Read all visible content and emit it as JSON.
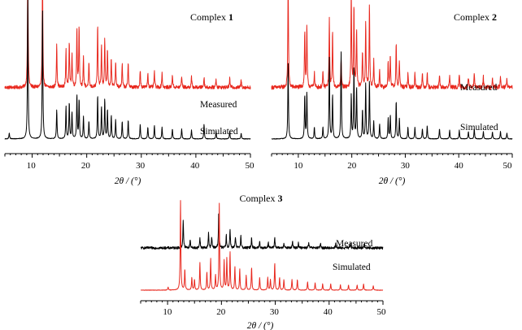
{
  "chart_data": [
    {
      "type": "line",
      "title": "Complex ",
      "title_number": "1",
      "xlabel": "2θ / (°)",
      "xlim": [
        5,
        50
      ],
      "x_ticks": [
        "10",
        "20",
        "30",
        "40",
        "50"
      ],
      "x_tick_values": [
        10,
        20,
        30,
        40,
        50
      ],
      "y_axis": "hidden",
      "series": [
        {
          "name": "Measured",
          "color": "#e8281e",
          "baseline": 0.45,
          "noise": 0.012,
          "peaks": [
            [
              9.2,
              0.88
            ],
            [
              11.9,
              0.78
            ],
            [
              14.5,
              0.3
            ],
            [
              16.2,
              0.26
            ],
            [
              16.8,
              0.32
            ],
            [
              17.3,
              0.22
            ],
            [
              18.2,
              0.4
            ],
            [
              18.6,
              0.42
            ],
            [
              19.4,
              0.2
            ],
            [
              20.4,
              0.16
            ],
            [
              22.0,
              0.42
            ],
            [
              22.7,
              0.28
            ],
            [
              23.3,
              0.33
            ],
            [
              23.8,
              0.26
            ],
            [
              24.5,
              0.2
            ],
            [
              25.3,
              0.17
            ],
            [
              26.5,
              0.16
            ],
            [
              27.6,
              0.17
            ],
            [
              29.8,
              0.12
            ],
            [
              31.2,
              0.1
            ],
            [
              32.4,
              0.11
            ],
            [
              33.8,
              0.1
            ],
            [
              35.7,
              0.09
            ],
            [
              37.4,
              0.08
            ],
            [
              39.2,
              0.07
            ],
            [
              41.5,
              0.07
            ],
            [
              43.7,
              0.06
            ],
            [
              46.2,
              0.06
            ],
            [
              48.3,
              0.05
            ]
          ]
        },
        {
          "name": "Simulated",
          "color": "#000000",
          "baseline": 0.1,
          "noise": 0.002,
          "peaks": [
            [
              5.8,
              0.04
            ],
            [
              9.2,
              1.0
            ],
            [
              11.9,
              0.9
            ],
            [
              14.5,
              0.2
            ],
            [
              16.2,
              0.22
            ],
            [
              16.8,
              0.25
            ],
            [
              17.3,
              0.18
            ],
            [
              18.2,
              0.3
            ],
            [
              18.6,
              0.27
            ],
            [
              19.4,
              0.15
            ],
            [
              20.4,
              0.12
            ],
            [
              22.0,
              0.3
            ],
            [
              22.7,
              0.22
            ],
            [
              23.3,
              0.27
            ],
            [
              23.8,
              0.2
            ],
            [
              24.5,
              0.16
            ],
            [
              25.3,
              0.13
            ],
            [
              26.5,
              0.12
            ],
            [
              27.6,
              0.13
            ],
            [
              29.8,
              0.1
            ],
            [
              31.2,
              0.08
            ],
            [
              32.4,
              0.09
            ],
            [
              33.8,
              0.08
            ],
            [
              35.7,
              0.07
            ],
            [
              37.4,
              0.07
            ],
            [
              39.2,
              0.06
            ],
            [
              41.5,
              0.1
            ],
            [
              43.7,
              0.05
            ],
            [
              46.2,
              0.05
            ],
            [
              48.3,
              0.04
            ]
          ]
        }
      ]
    },
    {
      "type": "line",
      "title": "Complex ",
      "title_number": "2",
      "xlabel": "2θ / (°)",
      "xlim": [
        5,
        50
      ],
      "x_ticks": [
        "10",
        "20",
        "30",
        "40",
        "50"
      ],
      "x_tick_values": [
        10,
        20,
        30,
        40,
        50
      ],
      "y_axis": "hidden",
      "series": [
        {
          "name": "Measured",
          "color": "#e8281e",
          "baseline": 0.45,
          "noise": 0.014,
          "peaks": [
            [
              8.1,
              0.75
            ],
            [
              11.2,
              0.38
            ],
            [
              11.6,
              0.42
            ],
            [
              13.0,
              0.1
            ],
            [
              14.6,
              0.1
            ],
            [
              15.8,
              0.46
            ],
            [
              16.4,
              0.38
            ],
            [
              18.0,
              0.2
            ],
            [
              19.9,
              0.66
            ],
            [
              20.4,
              0.55
            ],
            [
              20.9,
              0.4
            ],
            [
              22.0,
              0.25
            ],
            [
              22.6,
              0.45
            ],
            [
              23.3,
              0.56
            ],
            [
              24.1,
              0.18
            ],
            [
              25.2,
              0.12
            ],
            [
              26.8,
              0.18
            ],
            [
              27.2,
              0.22
            ],
            [
              28.3,
              0.3
            ],
            [
              28.9,
              0.18
            ],
            [
              30.5,
              0.1
            ],
            [
              31.8,
              0.1
            ],
            [
              33.2,
              0.09
            ],
            [
              34.1,
              0.1
            ],
            [
              36.4,
              0.08
            ],
            [
              38.3,
              0.08
            ],
            [
              40.1,
              0.08
            ],
            [
              41.8,
              0.07
            ],
            [
              42.9,
              0.09
            ],
            [
              44.6,
              0.07
            ],
            [
              46.3,
              0.07
            ],
            [
              47.8,
              0.07
            ],
            [
              49.0,
              0.06
            ]
          ]
        },
        {
          "name": "Simulated",
          "color": "#000000",
          "baseline": 0.1,
          "noise": 0.002,
          "peaks": [
            [
              8.1,
              0.52
            ],
            [
              11.2,
              0.3
            ],
            [
              11.6,
              0.32
            ],
            [
              13.0,
              0.08
            ],
            [
              14.6,
              0.08
            ],
            [
              15.8,
              0.55
            ],
            [
              16.4,
              0.3
            ],
            [
              18.0,
              0.6
            ],
            [
              19.9,
              0.3
            ],
            [
              20.4,
              0.5
            ],
            [
              20.9,
              0.35
            ],
            [
              22.0,
              0.2
            ],
            [
              22.6,
              0.38
            ],
            [
              23.3,
              0.4
            ],
            [
              24.1,
              0.12
            ],
            [
              25.2,
              0.1
            ],
            [
              26.8,
              0.14
            ],
            [
              27.2,
              0.16
            ],
            [
              28.3,
              0.26
            ],
            [
              28.9,
              0.14
            ],
            [
              30.5,
              0.08
            ],
            [
              31.8,
              0.08
            ],
            [
              33.2,
              0.07
            ],
            [
              34.1,
              0.09
            ],
            [
              36.4,
              0.07
            ],
            [
              38.3,
              0.06
            ],
            [
              40.1,
              0.06
            ],
            [
              41.8,
              0.05
            ],
            [
              42.9,
              0.07
            ],
            [
              44.6,
              0.05
            ],
            [
              46.3,
              0.05
            ],
            [
              47.8,
              0.05
            ],
            [
              49.0,
              0.04
            ]
          ]
        }
      ]
    },
    {
      "type": "line",
      "title": "Complex ",
      "title_number": "3",
      "xlabel": "2θ / (°)",
      "xlim": [
        5,
        50
      ],
      "x_ticks": [
        "10",
        "20",
        "30",
        "40",
        "50"
      ],
      "x_tick_values": [
        10,
        20,
        30,
        40,
        50
      ],
      "y_axis": "hidden",
      "series": [
        {
          "name": "Measured",
          "color": "#000000",
          "baseline": 0.5,
          "noise": 0.012,
          "peaks": [
            [
              12.9,
              0.27
            ],
            [
              14.2,
              0.08
            ],
            [
              16.0,
              0.1
            ],
            [
              17.6,
              0.14
            ],
            [
              18.2,
              0.1
            ],
            [
              19.5,
              0.34
            ],
            [
              20.9,
              0.12
            ],
            [
              21.6,
              0.18
            ],
            [
              22.6,
              0.1
            ],
            [
              23.6,
              0.12
            ],
            [
              25.6,
              0.1
            ],
            [
              27.1,
              0.06
            ],
            [
              28.7,
              0.06
            ],
            [
              29.9,
              0.1
            ],
            [
              31.6,
              0.05
            ],
            [
              33.2,
              0.06
            ],
            [
              34.3,
              0.05
            ],
            [
              36.2,
              0.05
            ],
            [
              38.4,
              0.04
            ],
            [
              41.2,
              0.04
            ],
            [
              44.0,
              0.04
            ],
            [
              46.5,
              0.04
            ]
          ]
        },
        {
          "name": "Simulated",
          "color": "#e8281e",
          "baseline": 0.1,
          "noise": 0.002,
          "peaks": [
            [
              10.1,
              0.03
            ],
            [
              12.4,
              0.85
            ],
            [
              13.2,
              0.2
            ],
            [
              14.5,
              0.12
            ],
            [
              15.0,
              0.1
            ],
            [
              16.0,
              0.26
            ],
            [
              17.3,
              0.17
            ],
            [
              18.0,
              0.3
            ],
            [
              18.9,
              0.14
            ],
            [
              19.6,
              0.82
            ],
            [
              20.5,
              0.28
            ],
            [
              21.0,
              0.3
            ],
            [
              21.6,
              0.36
            ],
            [
              22.5,
              0.22
            ],
            [
              23.4,
              0.2
            ],
            [
              24.6,
              0.14
            ],
            [
              25.6,
              0.22
            ],
            [
              27.1,
              0.12
            ],
            [
              28.6,
              0.12
            ],
            [
              29.1,
              0.1
            ],
            [
              29.9,
              0.26
            ],
            [
              30.8,
              0.12
            ],
            [
              31.6,
              0.1
            ],
            [
              33.1,
              0.1
            ],
            [
              34.1,
              0.1
            ],
            [
              36.0,
              0.08
            ],
            [
              37.4,
              0.07
            ],
            [
              38.8,
              0.06
            ],
            [
              40.3,
              0.06
            ],
            [
              42.1,
              0.05
            ],
            [
              43.6,
              0.05
            ],
            [
              45.2,
              0.05
            ],
            [
              46.4,
              0.06
            ],
            [
              48.2,
              0.04
            ]
          ]
        }
      ]
    }
  ]
}
